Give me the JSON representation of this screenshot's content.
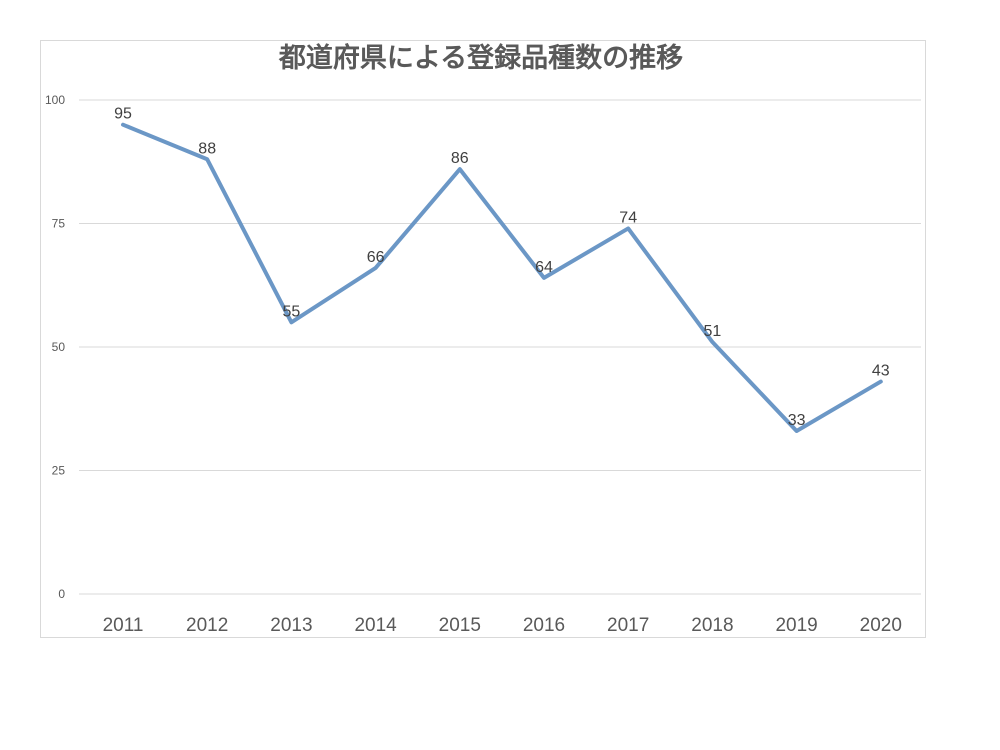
{
  "chart_data": {
    "type": "line",
    "title": "都道府県による登録品種数の推移",
    "xlabel": "",
    "ylabel": "",
    "categories": [
      "2011",
      "2012",
      "2013",
      "2014",
      "2015",
      "2016",
      "2017",
      "2018",
      "2019",
      "2020"
    ],
    "series": [
      {
        "values": [
          95,
          88,
          55,
          66,
          86,
          64,
          74,
          51,
          33,
          43
        ]
      }
    ],
    "ylim": [
      0,
      100
    ],
    "yticks": [
      "0",
      "25",
      "50",
      "75",
      "100"
    ],
    "grid": true,
    "legend": "none",
    "data_labels": true,
    "line_color": "#6b97c6"
  }
}
